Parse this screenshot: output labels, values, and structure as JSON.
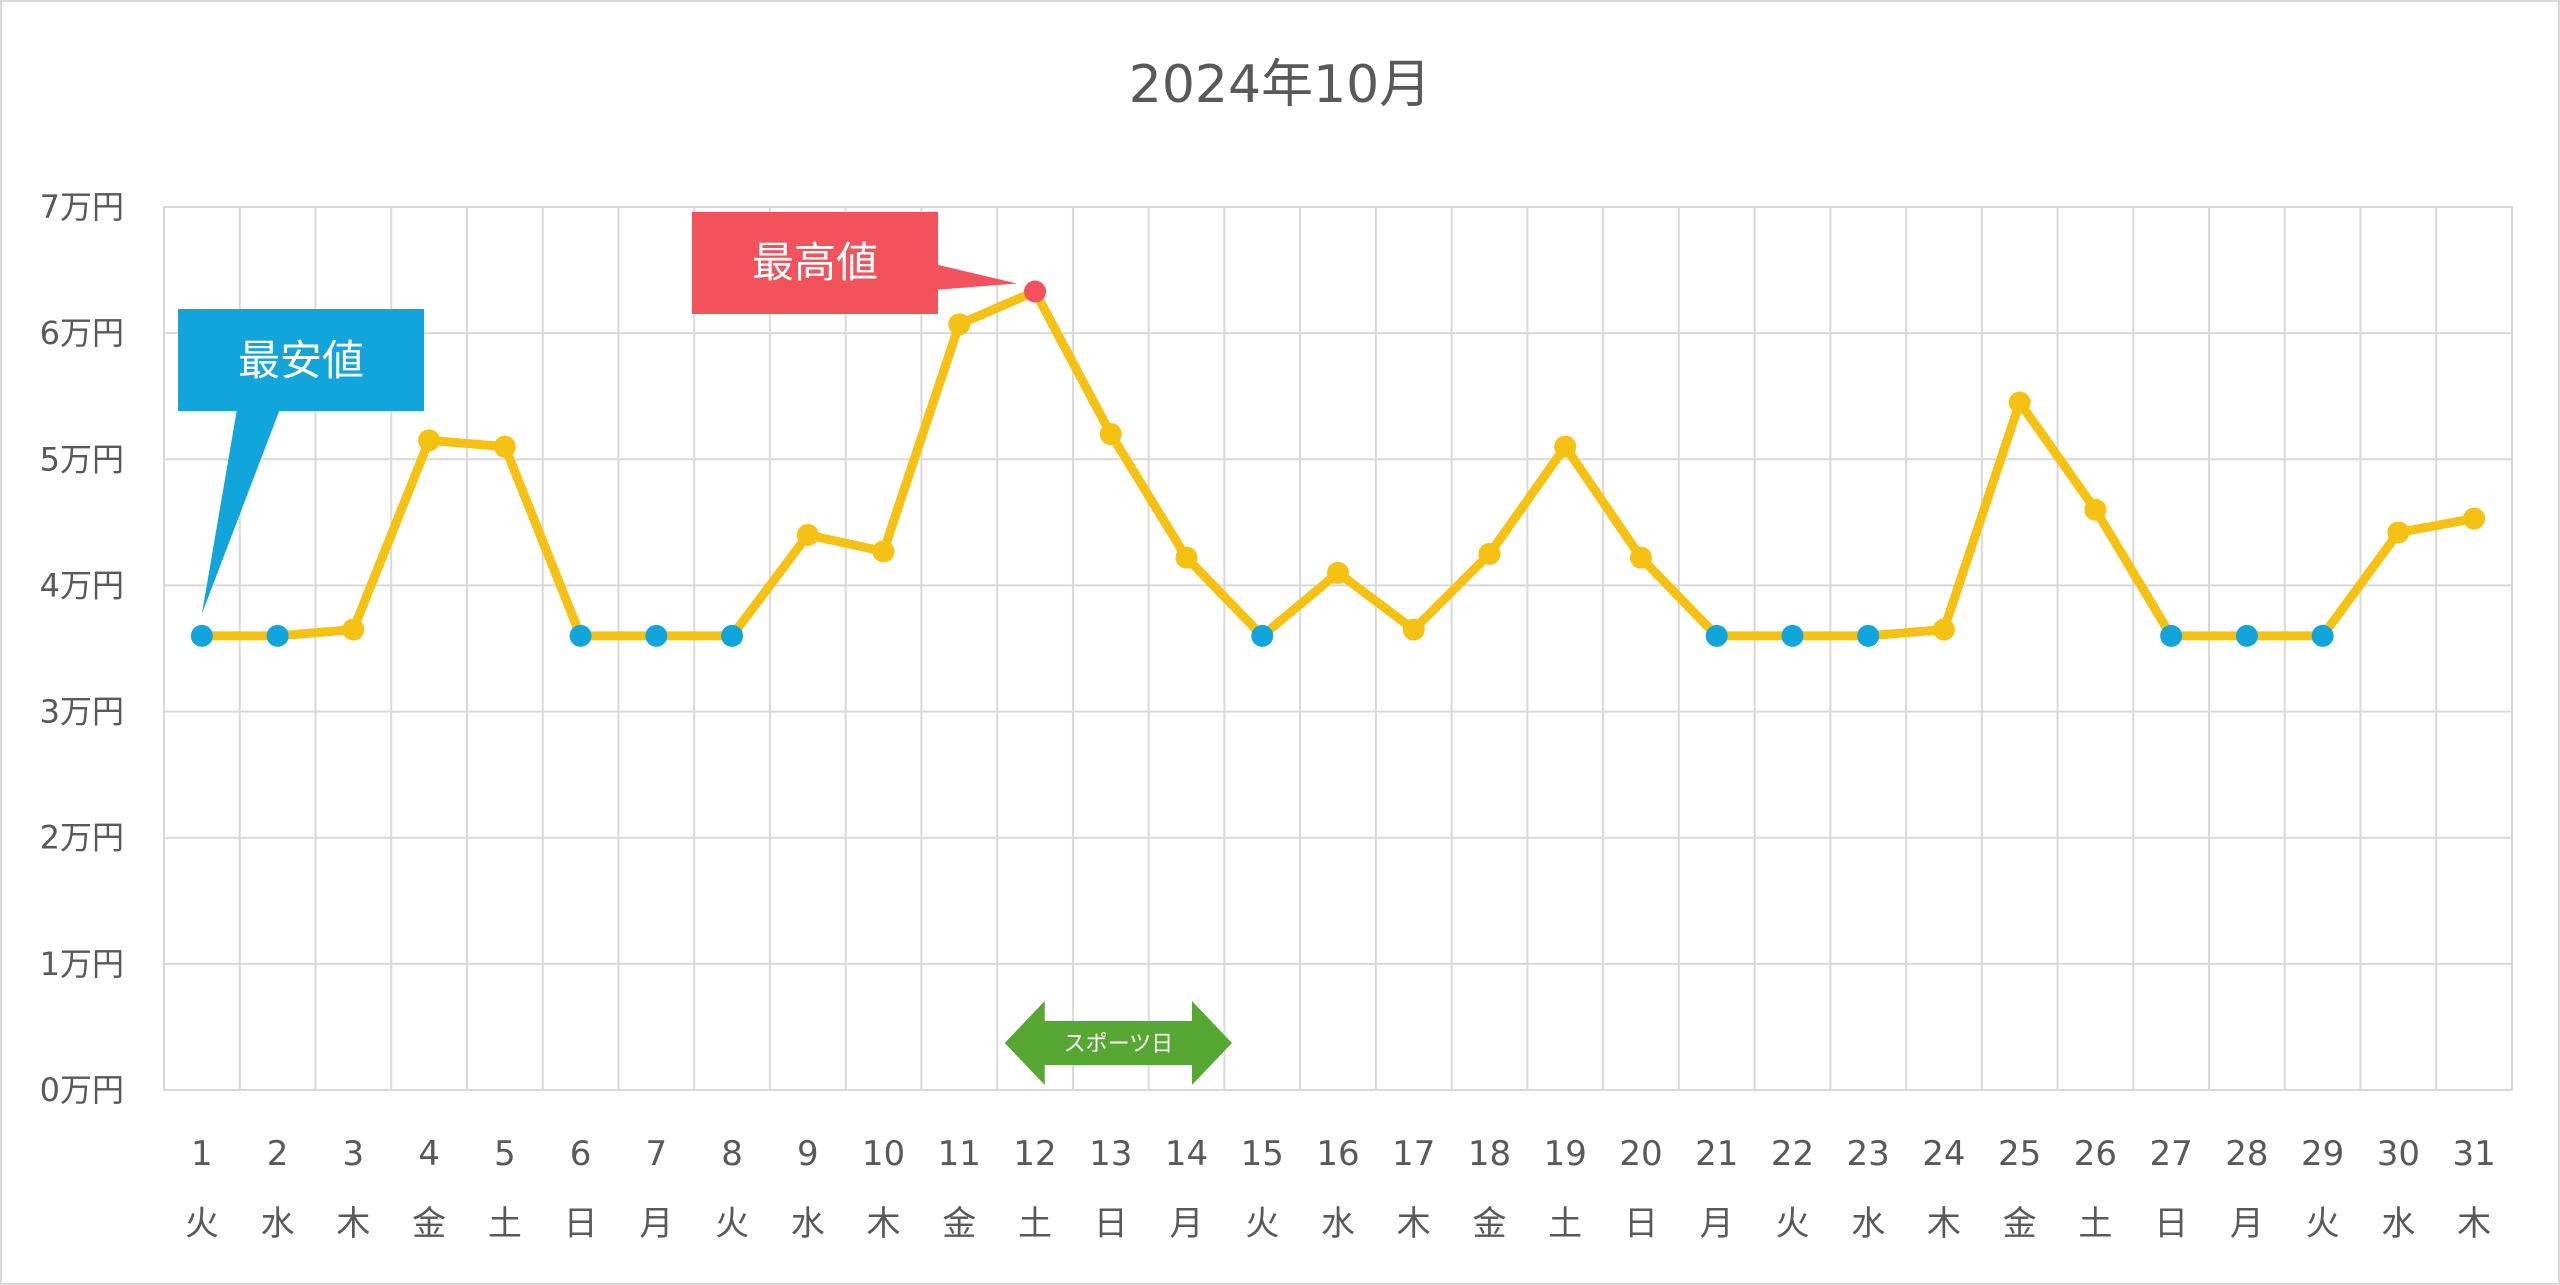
{
  "chart_data": {
    "type": "line",
    "title": "2024年10月",
    "x": [
      1,
      2,
      3,
      4,
      5,
      6,
      7,
      8,
      9,
      10,
      11,
      12,
      13,
      14,
      15,
      16,
      17,
      18,
      19,
      20,
      21,
      22,
      23,
      24,
      25,
      26,
      27,
      28,
      29,
      30,
      31
    ],
    "weekdays": [
      "火",
      "水",
      "木",
      "金",
      "土",
      "日",
      "月",
      "火",
      "水",
      "木",
      "金",
      "土",
      "日",
      "月",
      "火",
      "水",
      "木",
      "金",
      "土",
      "日",
      "月",
      "火",
      "水",
      "木",
      "金",
      "土",
      "日",
      "月",
      "火",
      "水",
      "木"
    ],
    "series": [
      {
        "values": [
          3.6,
          3.6,
          3.65,
          5.15,
          5.1,
          3.6,
          3.6,
          3.6,
          4.4,
          4.27,
          6.07,
          6.33,
          5.2,
          4.22,
          3.6,
          4.1,
          3.65,
          4.25,
          5.1,
          4.22,
          3.6,
          3.6,
          3.6,
          3.65,
          5.45,
          4.6,
          3.6,
          3.6,
          3.6,
          4.42,
          4.53
        ],
        "color": "#F5C213"
      }
    ],
    "ylim": [
      0,
      7
    ],
    "yticks": [
      0,
      1,
      2,
      3,
      4,
      5,
      6,
      7
    ],
    "ytick_labels": [
      "0万円",
      "1万円",
      "2万円",
      "3万円",
      "4万円",
      "5万円",
      "6万円",
      "7万円"
    ],
    "grid": true,
    "min_color": "#12A5DB",
    "max_color": "#F2525C",
    "annotations": {
      "min": {
        "label": "最安値",
        "day": 1,
        "color": "#12A5DB"
      },
      "max": {
        "label": "最高値",
        "day": 12,
        "color": "#F2525C"
      },
      "holiday": {
        "label": "スポーツ日",
        "from_day": 11.6,
        "to_day": 14.6,
        "color": "#56A832"
      }
    }
  }
}
